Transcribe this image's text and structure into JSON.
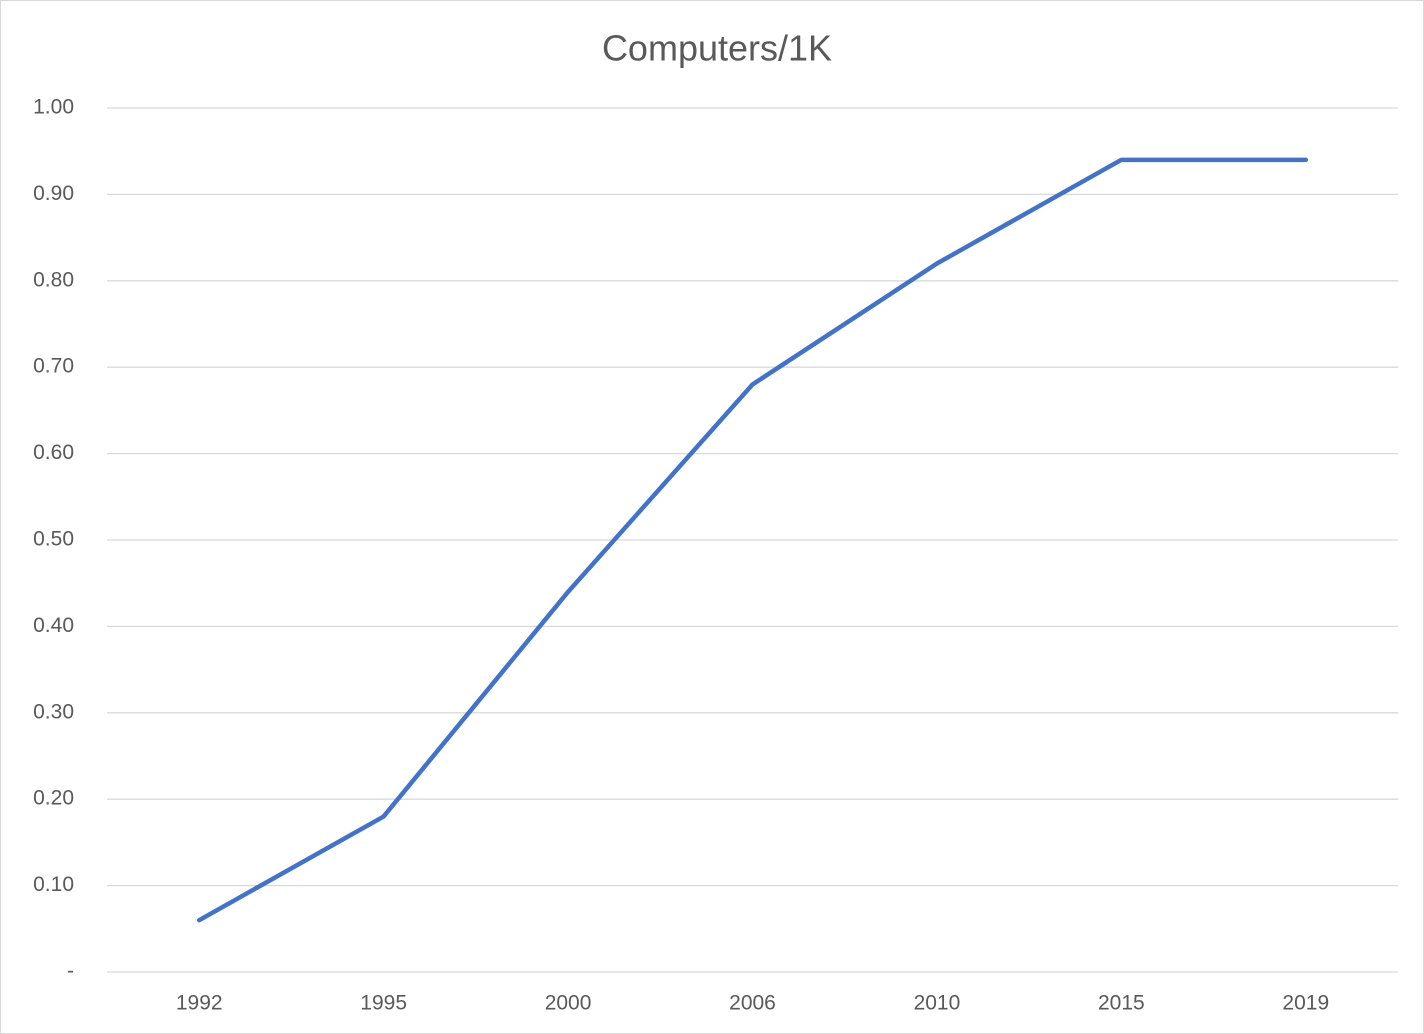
{
  "chart_data": {
    "type": "line",
    "title": "Computers/1K",
    "categories": [
      "1992",
      "1995",
      "2000",
      "2006",
      "2010",
      "2015",
      "2019"
    ],
    "series": [
      {
        "color": "#4472c4",
        "values": [
          0.06,
          0.18,
          0.44,
          0.68,
          0.82,
          0.94,
          0.94
        ]
      }
    ],
    "ylim": [
      0,
      1
    ],
    "yticks": [
      {
        "value": 0,
        "label": "-"
      },
      {
        "value": 0.1,
        "label": "0.10"
      },
      {
        "value": 0.2,
        "label": "0.20"
      },
      {
        "value": 0.3,
        "label": "0.30"
      },
      {
        "value": 0.4,
        "label": "0.40"
      },
      {
        "value": 0.5,
        "label": "0.50"
      },
      {
        "value": 0.6,
        "label": "0.60"
      },
      {
        "value": 0.7,
        "label": "0.70"
      },
      {
        "value": 0.8,
        "label": "0.80"
      },
      {
        "value": 0.9,
        "label": "0.90"
      },
      {
        "value": 1,
        "label": "1.00"
      }
    ],
    "grid": true
  }
}
